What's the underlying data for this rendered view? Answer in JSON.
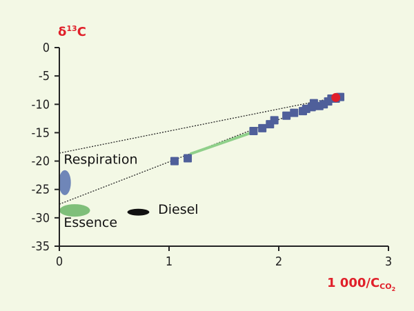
{
  "chart_data": {
    "type": "scatter",
    "title": "",
    "ylabel_main": "δ",
    "ylabel_sup": "13",
    "ylabel_tail": "C",
    "xlabel_main": "1 000/C",
    "xlabel_sub": "CO",
    "xlabel_subsub": "2",
    "xlim": [
      0,
      3
    ],
    "ylim": [
      -35,
      0
    ],
    "x_ticks": [
      0,
      1,
      2,
      3
    ],
    "x_tick_labels": [
      "0",
      "1",
      "2",
      "3"
    ],
    "y_ticks": [
      0,
      -5,
      -10,
      -15,
      -20,
      -25,
      -30,
      -35
    ],
    "y_tick_labels": [
      "0",
      "-5",
      "-10",
      "-15",
      "-20",
      "-25",
      "-30",
      "-35"
    ],
    "grid": false,
    "series": [
      {
        "values_x": [
          1.05,
          1.17,
          1.77,
          1.85,
          1.92,
          1.96,
          2.07,
          2.14,
          2.22,
          2.25,
          2.3,
          2.32,
          2.37,
          2.41,
          2.45,
          2.48,
          2.52,
          2.56
        ],
        "values_y": [
          -20.0,
          -19.5,
          -14.7,
          -14.2,
          -13.5,
          -12.8,
          -12.0,
          -11.5,
          -11.2,
          -10.8,
          -10.5,
          -9.8,
          -10.3,
          -10.0,
          -9.5,
          -9.0,
          -9.0,
          -8.7
        ],
        "color": "#4f5f9a",
        "marker": "square"
      }
    ],
    "highlight_point": {
      "x": 2.52,
      "y": -8.8,
      "color": "#e0202a"
    },
    "trend_segment": {
      "x": [
        1.2,
        1.75
      ],
      "y": [
        -18.7,
        -15.0
      ],
      "color": "#8fd08a"
    },
    "mixing_lines": [
      {
        "x": [
          0.0,
          2.52
        ],
        "y": [
          -18.6,
          -8.8
        ]
      },
      {
        "x": [
          0.0,
          2.52
        ],
        "y": [
          -27.6,
          -8.8
        ]
      }
    ],
    "sources": [
      {
        "label": "Respiration",
        "cx": 0.05,
        "cy": -23.8,
        "rx": 0.055,
        "ry": 2.2,
        "color": "#6f86b8",
        "label_x": 0.04,
        "label_y": -20.5
      },
      {
        "label": "Essence",
        "cx": 0.14,
        "cy": -28.7,
        "rx": 0.14,
        "ry": 1.1,
        "color": "#7fbf7a",
        "label_x": 0.04,
        "label_y": -31.6
      },
      {
        "label": "Diesel",
        "cx": 0.72,
        "cy": -29.0,
        "rx": 0.1,
        "ry": 0.6,
        "color": "#111111",
        "label_x": 0.9,
        "label_y": -29.3
      }
    ],
    "colors": {
      "background": "#f3f8e5",
      "axis": "#222222",
      "axis_label": "#e0202a",
      "mixing_line": "#222222"
    }
  }
}
